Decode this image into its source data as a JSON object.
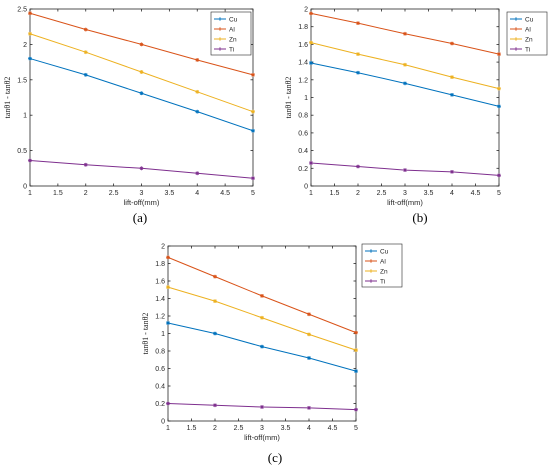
{
  "chart_data": [
    {
      "type": "line",
      "panel_label": "(a)",
      "x": [
        1,
        2,
        3,
        4,
        5
      ],
      "x_ticks": [
        "1",
        "1.5",
        "2",
        "2.5",
        "3",
        "3.5",
        "4",
        "4.5",
        "5"
      ],
      "y_ticks": [
        "0",
        "0.5",
        "1",
        "1.5",
        "2",
        "2.5"
      ],
      "xlim": [
        1,
        5
      ],
      "ylim": [
        0,
        2.5
      ],
      "xlabel": "lift-off(mm)",
      "ylabel": "tanθ1 - tanθ2",
      "legend_position": "top-right",
      "series": [
        {
          "name": "Cu",
          "color": "#0072BD",
          "values": [
            1.8,
            1.57,
            1.31,
            1.05,
            0.78
          ]
        },
        {
          "name": "Al",
          "color": "#D95319",
          "values": [
            2.44,
            2.21,
            2.0,
            1.78,
            1.57
          ]
        },
        {
          "name": "Zn",
          "color": "#EDB120",
          "values": [
            2.15,
            1.89,
            1.61,
            1.33,
            1.05
          ]
        },
        {
          "name": "Ti",
          "color": "#7E2F8E",
          "values": [
            0.36,
            0.3,
            0.25,
            0.18,
            0.11
          ]
        }
      ]
    },
    {
      "type": "line",
      "panel_label": "(b)",
      "x": [
        1,
        2,
        3,
        4,
        5
      ],
      "x_ticks": [
        "1",
        "1.5",
        "2",
        "2.5",
        "3",
        "3.5",
        "4",
        "4.5",
        "5"
      ],
      "y_ticks": [
        "0",
        "0.2",
        "0.4",
        "0.6",
        "0.8",
        "1",
        "1.2",
        "1.4",
        "1.6",
        "1.8",
        "2"
      ],
      "xlim": [
        1,
        5
      ],
      "ylim": [
        0,
        2
      ],
      "xlabel": "lift-off(mm)",
      "ylabel": "tanθ1 - tanθ2",
      "legend_position": "top-right",
      "series": [
        {
          "name": "Cu",
          "color": "#0072BD",
          "values": [
            1.39,
            1.28,
            1.16,
            1.03,
            0.9
          ]
        },
        {
          "name": "Al",
          "color": "#D95319",
          "values": [
            1.95,
            1.84,
            1.72,
            1.61,
            1.49
          ]
        },
        {
          "name": "Zn",
          "color": "#EDB120",
          "values": [
            1.62,
            1.49,
            1.37,
            1.23,
            1.1
          ]
        },
        {
          "name": "Ti",
          "color": "#7E2F8E",
          "values": [
            0.26,
            0.22,
            0.18,
            0.16,
            0.12
          ]
        }
      ]
    },
    {
      "type": "line",
      "panel_label": "(c)",
      "x": [
        1,
        2,
        3,
        4,
        5
      ],
      "x_ticks": [
        "1",
        "1.5",
        "2",
        "2.5",
        "3",
        "3.5",
        "4",
        "4.5",
        "5"
      ],
      "y_ticks": [
        "0",
        "0.2",
        "0.4",
        "0.6",
        "0.8",
        "1",
        "1.2",
        "1.4",
        "1.6",
        "1.8",
        "2"
      ],
      "xlim": [
        1,
        5
      ],
      "ylim": [
        0,
        2
      ],
      "xlabel": "lift-off(mm)",
      "ylabel": "tanθ1 - tanθ2",
      "legend_position": "top-right",
      "series": [
        {
          "name": "Cu",
          "color": "#0072BD",
          "values": [
            1.12,
            1.0,
            0.85,
            0.72,
            0.57
          ]
        },
        {
          "name": "Al",
          "color": "#D95319",
          "values": [
            1.87,
            1.65,
            1.43,
            1.22,
            1.01
          ]
        },
        {
          "name": "Zn",
          "color": "#EDB120",
          "values": [
            1.53,
            1.37,
            1.18,
            0.99,
            0.81
          ]
        },
        {
          "name": "Ti",
          "color": "#7E2F8E",
          "values": [
            0.2,
            0.18,
            0.16,
            0.15,
            0.13
          ]
        }
      ]
    }
  ]
}
